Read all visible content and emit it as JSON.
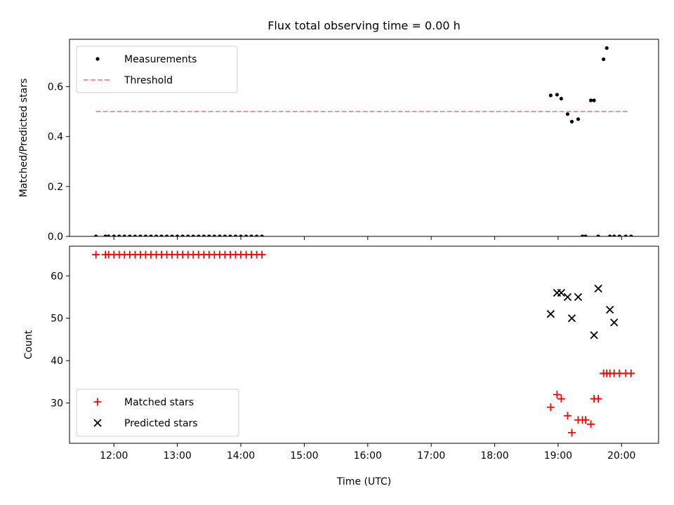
{
  "title": "Flux total observing time = 0.00 h",
  "xlabel": "Time (UTC)",
  "x_ticks": [
    "12:00",
    "13:00",
    "14:00",
    "15:00",
    "16:00",
    "17:00",
    "18:00",
    "19:00",
    "20:00"
  ],
  "colors": {
    "measurements": "#000000",
    "threshold": "#ff7f7f",
    "matched": "#ff0000",
    "predicted": "#000000"
  },
  "chart_data": [
    {
      "type": "scatter",
      "ylabel": "Matched/Predicted stars",
      "xlim": [
        "11:18",
        "20:35"
      ],
      "ylim": [
        0,
        0.79
      ],
      "y_ticks": [
        "0.0",
        "0.2",
        "0.4",
        "0.6"
      ],
      "legend": "top-left",
      "legend_entries": [
        "Measurements",
        "Threshold"
      ],
      "threshold": {
        "value": 0.5,
        "x_range": [
          "11:43",
          "20:06"
        ]
      },
      "series": [
        {
          "name": "Measurements",
          "x": [
            "11:43",
            "11:52",
            "11:55",
            "12:00",
            "12:05",
            "12:10",
            "12:15",
            "12:20",
            "12:25",
            "12:30",
            "12:35",
            "12:40",
            "12:45",
            "12:50",
            "12:55",
            "13:00",
            "13:05",
            "13:10",
            "13:15",
            "13:20",
            "13:25",
            "13:30",
            "13:35",
            "13:40",
            "13:45",
            "13:50",
            "13:55",
            "14:00",
            "14:05",
            "14:10",
            "14:15",
            "14:20",
            "18:53",
            "18:59",
            "19:03",
            "19:09",
            "19:13",
            "19:19",
            "19:23",
            "19:26",
            "19:31",
            "19:34",
            "19:38",
            "19:43",
            "19:46",
            "19:49",
            "19:53",
            "19:58",
            "20:04",
            "20:09"
          ],
          "y": [
            0,
            0,
            0,
            0,
            0,
            0,
            0,
            0,
            0,
            0,
            0,
            0,
            0,
            0,
            0,
            0,
            0,
            0,
            0,
            0,
            0,
            0,
            0,
            0,
            0,
            0,
            0,
            0,
            0,
            0,
            0,
            0,
            0.565,
            0.568,
            0.552,
            0.49,
            0.46,
            0.47,
            0,
            0,
            0.545,
            0.545,
            0,
            0.71,
            0.755,
            0,
            0,
            0,
            0,
            0
          ]
        }
      ]
    },
    {
      "type": "scatter",
      "ylabel": "Count",
      "xlim": [
        "11:18",
        "20:35"
      ],
      "ylim": [
        20.5,
        67
      ],
      "y_ticks": [
        "30",
        "40",
        "50",
        "60"
      ],
      "legend": "bottom-left",
      "legend_entries": [
        "Matched stars",
        "Predicted stars"
      ],
      "series": [
        {
          "name": "Matched stars",
          "x": [
            "11:43",
            "11:52",
            "11:55",
            "12:00",
            "12:05",
            "12:10",
            "12:15",
            "12:20",
            "12:25",
            "12:30",
            "12:35",
            "12:40",
            "12:45",
            "12:50",
            "12:55",
            "13:00",
            "13:05",
            "13:10",
            "13:15",
            "13:20",
            "13:25",
            "13:30",
            "13:35",
            "13:40",
            "13:45",
            "13:50",
            "13:55",
            "14:00",
            "14:05",
            "14:10",
            "14:15",
            "14:20",
            "18:53",
            "18:59",
            "19:03",
            "19:09",
            "19:13",
            "19:19",
            "19:23",
            "19:26",
            "19:31",
            "19:34",
            "19:38",
            "19:43",
            "19:46",
            "19:49",
            "19:53",
            "19:58",
            "20:04",
            "20:09"
          ],
          "y": [
            65,
            65,
            65,
            65,
            65,
            65,
            65,
            65,
            65,
            65,
            65,
            65,
            65,
            65,
            65,
            65,
            65,
            65,
            65,
            65,
            65,
            65,
            65,
            65,
            65,
            65,
            65,
            65,
            65,
            65,
            65,
            65,
            29,
            32,
            31,
            27,
            23,
            26,
            26,
            26,
            25,
            31,
            31,
            37,
            37,
            37,
            37,
            37,
            37,
            37
          ]
        },
        {
          "name": "Predicted stars",
          "x": [
            "18:53",
            "18:59",
            "19:03",
            "19:09",
            "19:13",
            "19:19",
            "19:34",
            "19:38",
            "19:49",
            "19:53"
          ],
          "y": [
            51,
            56,
            56,
            55,
            50,
            55,
            46,
            57,
            52,
            49
          ]
        }
      ]
    }
  ]
}
